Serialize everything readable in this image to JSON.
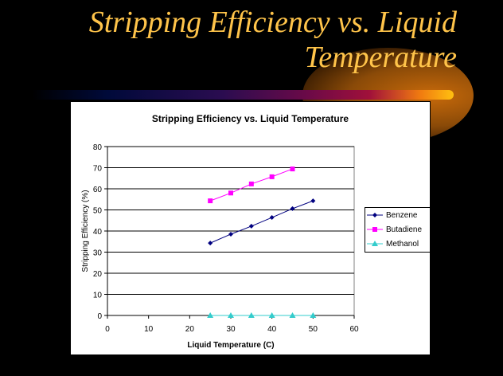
{
  "slide": {
    "title_line1": "Stripping Efficiency vs. Liquid",
    "title_line2": "Temperature"
  },
  "chart_data": {
    "type": "line",
    "title": "Stripping Efficiency vs. Liquid Temperature",
    "xlabel": "Liquid Temperature (C)",
    "ylabel": "Stripping Efficiency (%)",
    "xlim": [
      0,
      60
    ],
    "ylim": [
      0,
      80
    ],
    "xticks": [
      0,
      10,
      20,
      30,
      40,
      50,
      60
    ],
    "yticks": [
      0,
      10,
      20,
      30,
      40,
      50,
      60,
      70,
      80
    ],
    "grid": "horizontal",
    "legend_position": "right",
    "series": [
      {
        "name": "Benzene",
        "color": "#000080",
        "marker": "diamond",
        "x": [
          25,
          30,
          35,
          40,
          45,
          50
        ],
        "y": [
          34.3,
          38.5,
          42.3,
          46.4,
          50.6,
          54.3
        ]
      },
      {
        "name": "Butadiene",
        "color": "#ff00ff",
        "marker": "square",
        "x": [
          25,
          30,
          35,
          40,
          45
        ],
        "y": [
          54.3,
          58,
          62.3,
          65.7,
          69.4
        ]
      },
      {
        "name": "Methanol",
        "color": "#33cccc",
        "marker": "triangle",
        "x": [
          25,
          30,
          35,
          40,
          45,
          50
        ],
        "y": [
          0,
          0,
          0,
          0,
          0,
          0
        ]
      }
    ]
  }
}
